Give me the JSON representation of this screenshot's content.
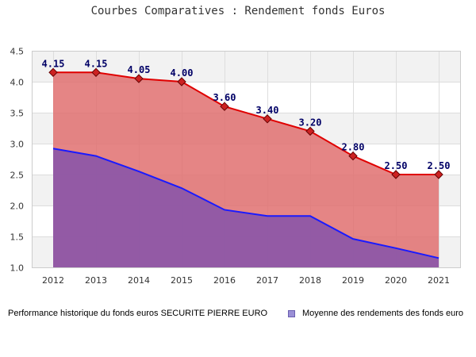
{
  "chart_data": {
    "type": "area",
    "title": "Courbes Comparatives : Rendement fonds Euros",
    "categories": [
      "2012",
      "2013",
      "2014",
      "2015",
      "2016",
      "2017",
      "2018",
      "2019",
      "2020",
      "2021"
    ],
    "series": [
      {
        "name": "Performance historique du fonds euros SECURITE PIERRE EURO",
        "values": [
          4.15,
          4.15,
          4.05,
          4.0,
          3.6,
          3.4,
          3.2,
          2.8,
          2.5,
          2.5
        ],
        "data_labels": [
          "4.15",
          "4.15",
          "4.05",
          "4.00",
          "3.60",
          "3.40",
          "3.20",
          "2.80",
          "2.50",
          "2.50"
        ],
        "color": "#e00000",
        "fill": "#e07070"
      },
      {
        "name": "Moyenne des rendements des fonds euro",
        "values": [
          2.92,
          2.8,
          2.55,
          2.28,
          1.93,
          1.83,
          1.83,
          1.46,
          1.31,
          1.15
        ],
        "color": "#1a1aff",
        "fill": "#8a55a8"
      }
    ],
    "ylim": [
      1.0,
      4.5
    ],
    "yticks": [
      "1.0",
      "1.5",
      "2.0",
      "2.5",
      "3.0",
      "3.5",
      "4.0",
      "4.5"
    ],
    "grid": true,
    "legend_position": "bottom"
  }
}
